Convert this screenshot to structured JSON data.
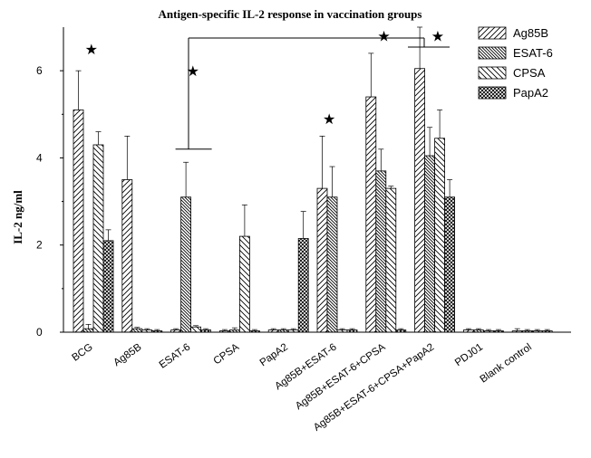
{
  "chart_data": {
    "type": "bar",
    "title": "Antigen-specific IL-2 response in vaccination groups",
    "xlabel": "",
    "ylabel": "IL-2 ng/ml",
    "ylim": [
      0,
      7
    ],
    "yticks": [
      0,
      2,
      4,
      6
    ],
    "grid": false,
    "legend_position": "top-right",
    "categories": [
      "BCG",
      "Ag85B",
      "ESAT-6",
      "CPSA",
      "PapA2",
      "Ag85B+ESAT-6",
      "Ag85B+ESAT-6+CPSA",
      "Ag85B+ESAT-6+CPSA+PapA2",
      "PDJ01",
      "Blank control"
    ],
    "series": [
      {
        "name": "Ag85B",
        "pattern": "diag-fwd",
        "values": [
          5.1,
          3.5,
          0.05,
          0.03,
          0.05,
          3.3,
          5.4,
          6.05,
          0.05,
          0.03
        ],
        "errors": [
          0.9,
          1.0,
          0.03,
          0.03,
          0.03,
          1.2,
          1.0,
          0.95,
          0.03,
          0.05
        ]
      },
      {
        "name": "ESAT-6",
        "pattern": "diag-back-dense",
        "values": [
          0.08,
          0.08,
          3.1,
          0.05,
          0.05,
          3.1,
          3.7,
          4.05,
          0.05,
          0.03
        ],
        "errors": [
          0.1,
          0.03,
          0.8,
          0.05,
          0.03,
          0.7,
          0.5,
          0.65,
          0.03,
          0.03
        ]
      },
      {
        "name": "CPSA",
        "pattern": "diag-back",
        "values": [
          4.3,
          0.05,
          0.12,
          2.2,
          0.05,
          0.05,
          3.3,
          4.45,
          0.03,
          0.03
        ],
        "errors": [
          0.3,
          0.03,
          0.03,
          0.72,
          0.03,
          0.03,
          0.05,
          0.65,
          0.03,
          0.03
        ]
      },
      {
        "name": "PapA2",
        "pattern": "crosshatch",
        "values": [
          2.1,
          0.03,
          0.05,
          0.03,
          2.15,
          0.05,
          0.05,
          3.1,
          0.03,
          0.03
        ],
        "errors": [
          0.25,
          0.03,
          0.03,
          0.03,
          0.62,
          0.03,
          0.03,
          0.4,
          0.03,
          0.03
        ]
      }
    ],
    "significance_marks": [
      {
        "category": "BCG",
        "value": 6.5,
        "symbol": "★"
      },
      {
        "category": "ESAT-6",
        "value": 6.0,
        "symbol": "★"
      },
      {
        "category": "Ag85B+ESAT-6",
        "value": 4.9,
        "symbol": "★"
      },
      {
        "category": "Ag85B+ESAT-6+CPSA",
        "value": 6.8,
        "symbol": "★"
      },
      {
        "category": "Ag85B+ESAT-6+CPSA+PapA2",
        "value": 6.8,
        "symbol": "★"
      }
    ]
  }
}
